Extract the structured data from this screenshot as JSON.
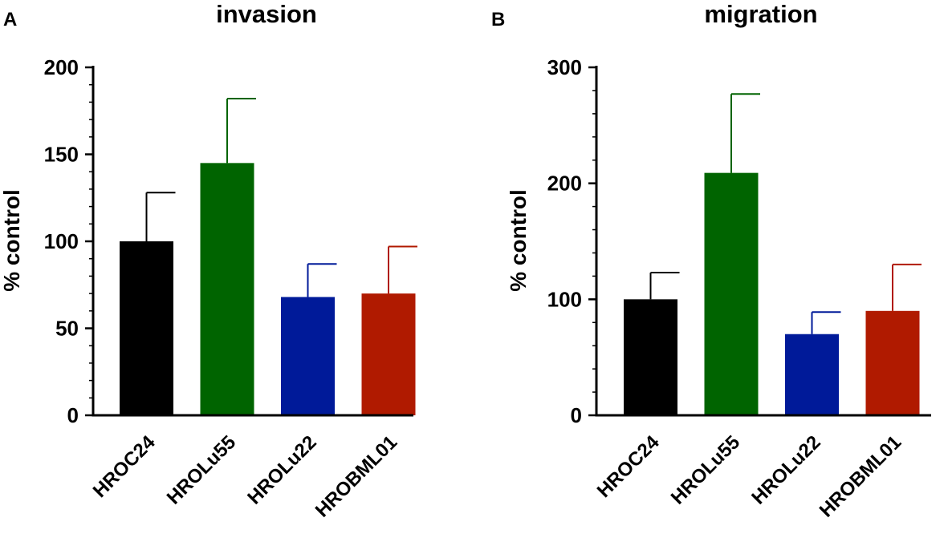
{
  "chart_data": [
    {
      "panel": "A",
      "type": "bar",
      "title": "invasion",
      "xlabel": "",
      "ylabel": "% control",
      "ylim": [
        0,
        200
      ],
      "yticks": [
        0,
        50,
        100,
        150,
        200
      ],
      "minor_ticks_per_interval": 5,
      "grid": false,
      "categories": [
        "HROC24",
        "HROLu55",
        "HROLu22",
        "HROBML01"
      ],
      "values": [
        100,
        145,
        68,
        70
      ],
      "errors": [
        28,
        37,
        19,
        27
      ],
      "colors": [
        "#000000",
        "#006400",
        "#001a99",
        "#b01a00"
      ]
    },
    {
      "panel": "B",
      "type": "bar",
      "title": "migration",
      "xlabel": "",
      "ylabel": "% control",
      "ylim": [
        0,
        300
      ],
      "yticks": [
        0,
        100,
        200,
        300
      ],
      "minor_ticks_per_interval": 5,
      "grid": false,
      "categories": [
        "HROC24",
        "HROLu55",
        "HROLu22",
        "HROBML01"
      ],
      "values": [
        100,
        209,
        70,
        90
      ],
      "errors": [
        23,
        68,
        19,
        40
      ],
      "colors": [
        "#000000",
        "#006400",
        "#001a99",
        "#b01a00"
      ]
    }
  ]
}
